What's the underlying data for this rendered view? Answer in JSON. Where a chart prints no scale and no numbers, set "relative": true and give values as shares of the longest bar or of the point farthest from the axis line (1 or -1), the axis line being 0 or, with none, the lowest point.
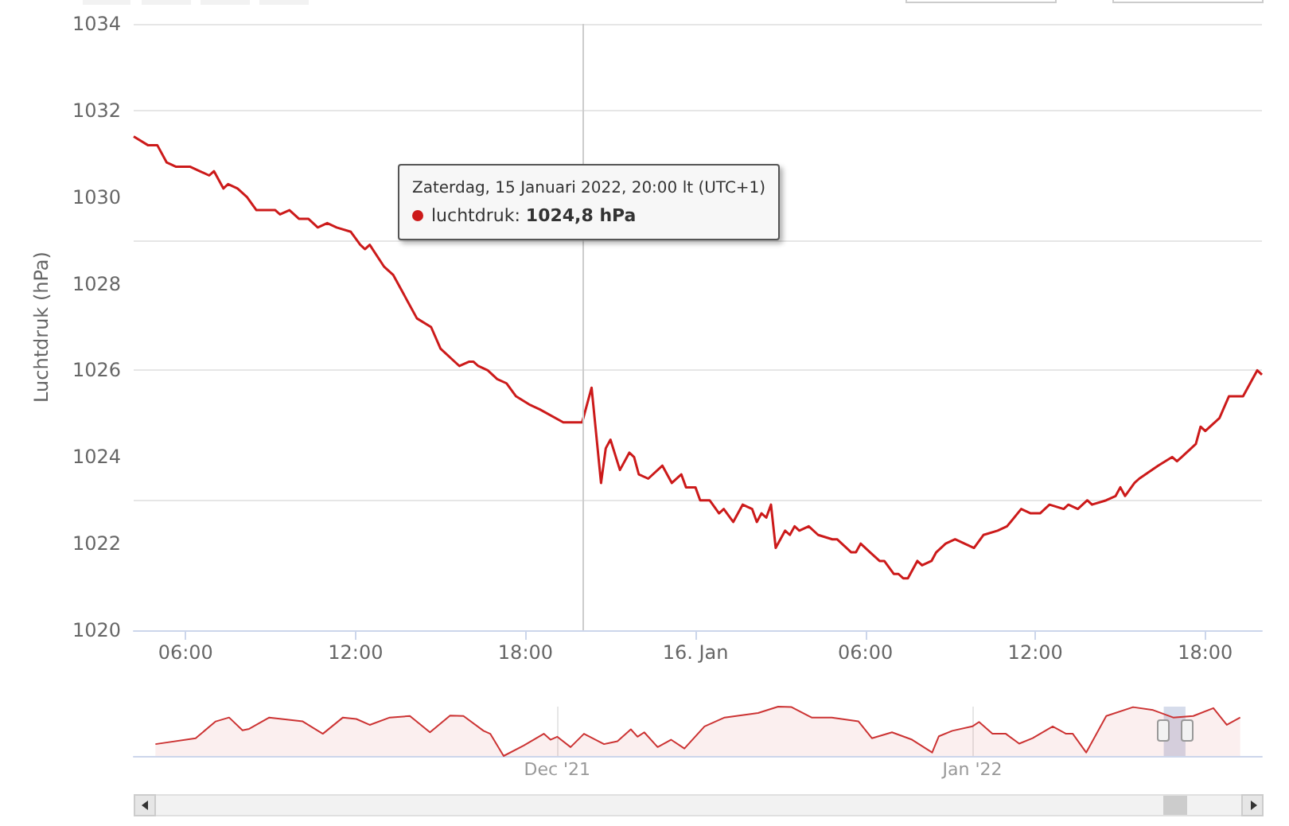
{
  "chart_data": [
    {
      "type": "line",
      "ylabel": "Luchtdruk (hPa)",
      "x": [
        "2022-01-15T04:10",
        "2022-01-15T04:40",
        "2022-01-15T05:00",
        "2022-01-15T05:20",
        "2022-01-15T05:40",
        "2022-01-15T06:10",
        "2022-01-15T06:30",
        "2022-01-15T06:50",
        "2022-01-15T07:00",
        "2022-01-15T07:20",
        "2022-01-15T07:30",
        "2022-01-15T07:50",
        "2022-01-15T08:10",
        "2022-01-15T08:30",
        "2022-01-15T09:10",
        "2022-01-15T09:20",
        "2022-01-15T09:40",
        "2022-01-15T10:00",
        "2022-01-15T10:20",
        "2022-01-15T10:40",
        "2022-01-15T11:00",
        "2022-01-15T11:20",
        "2022-01-15T11:50",
        "2022-01-15T12:10",
        "2022-01-15T12:20",
        "2022-01-15T12:30",
        "2022-01-15T13:00",
        "2022-01-15T13:20",
        "2022-01-15T14:10",
        "2022-01-15T14:40",
        "2022-01-15T15:00",
        "2022-01-15T15:40",
        "2022-01-15T16:00",
        "2022-01-15T16:10",
        "2022-01-15T16:20",
        "2022-01-15T16:40",
        "2022-01-15T17:00",
        "2022-01-15T17:20",
        "2022-01-15T17:40",
        "2022-01-15T18:10",
        "2022-01-15T18:30",
        "2022-01-15T19:20",
        "2022-01-15T20:00",
        "2022-01-15T20:20",
        "2022-01-15T20:40",
        "2022-01-15T20:50",
        "2022-01-15T21:00",
        "2022-01-15T21:20",
        "2022-01-15T21:40",
        "2022-01-15T21:50",
        "2022-01-15T22:00",
        "2022-01-15T22:20",
        "2022-01-15T22:50",
        "2022-01-15T23:10",
        "2022-01-15T23:30",
        "2022-01-15T23:40",
        "2022-01-16T00:00",
        "2022-01-16T00:10",
        "2022-01-16T00:30",
        "2022-01-16T00:50",
        "2022-01-16T01:00",
        "2022-01-16T01:20",
        "2022-01-16T01:40",
        "2022-01-16T02:00",
        "2022-01-16T02:10",
        "2022-01-16T02:20",
        "2022-01-16T02:30",
        "2022-01-16T02:40",
        "2022-01-16T02:50",
        "2022-01-16T03:10",
        "2022-01-16T03:20",
        "2022-01-16T03:30",
        "2022-01-16T03:40",
        "2022-01-16T04:00",
        "2022-01-16T04:20",
        "2022-01-16T04:50",
        "2022-01-16T05:00",
        "2022-01-16T05:30",
        "2022-01-16T05:40",
        "2022-01-16T05:50",
        "2022-01-16T06:10",
        "2022-01-16T06:30",
        "2022-01-16T06:40",
        "2022-01-16T07:00",
        "2022-01-16T07:10",
        "2022-01-16T07:20",
        "2022-01-16T07:30",
        "2022-01-16T07:50",
        "2022-01-16T08:00",
        "2022-01-16T08:20",
        "2022-01-16T08:30",
        "2022-01-16T08:50",
        "2022-01-16T09:10",
        "2022-01-16T09:50",
        "2022-01-16T10:10",
        "2022-01-16T10:40",
        "2022-01-16T11:00",
        "2022-01-16T11:30",
        "2022-01-16T11:50",
        "2022-01-16T12:10",
        "2022-01-16T12:30",
        "2022-01-16T13:00",
        "2022-01-16T13:10",
        "2022-01-16T13:30",
        "2022-01-16T13:50",
        "2022-01-16T14:00",
        "2022-01-16T14:30",
        "2022-01-16T14:50",
        "2022-01-16T15:00",
        "2022-01-16T15:10",
        "2022-01-16T15:30",
        "2022-01-16T15:40",
        "2022-01-16T16:20",
        "2022-01-16T16:50",
        "2022-01-16T17:00",
        "2022-01-16T17:10",
        "2022-01-16T17:40",
        "2022-01-16T17:50",
        "2022-01-16T18:00",
        "2022-01-16T18:30",
        "2022-01-16T18:50",
        "2022-01-16T19:20",
        "2022-01-16T19:40",
        "2022-01-16T19:50",
        "2022-01-16T20:00"
      ],
      "series": [
        {
          "color": "#cc1a1a",
          "values": [
            1031.4,
            1031.2,
            1031.2,
            1030.8,
            1030.7,
            1030.7,
            1030.6,
            1030.5,
            1030.6,
            1030.2,
            1030.3,
            1030.2,
            1030.0,
            1029.7,
            1029.7,
            1029.6,
            1029.7,
            1029.5,
            1029.5,
            1029.3,
            1029.4,
            1029.3,
            1029.2,
            1028.9,
            1028.8,
            1028.9,
            1028.4,
            1028.2,
            1027.2,
            1027.0,
            1026.5,
            1026.1,
            1026.2,
            1026.2,
            1026.1,
            1026.0,
            1025.8,
            1025.7,
            1025.4,
            1025.2,
            1025.1,
            1024.8,
            1024.8,
            1025.6,
            1023.4,
            1024.2,
            1024.4,
            1023.7,
            1024.1,
            1024.0,
            1023.6,
            1023.5,
            1023.8,
            1023.4,
            1023.6,
            1023.3,
            1023.3,
            1023.0,
            1023.0,
            1022.7,
            1022.8,
            1022.5,
            1022.9,
            1022.8,
            1022.5,
            1022.7,
            1022.6,
            1022.9,
            1021.9,
            1022.3,
            1022.2,
            1022.4,
            1022.3,
            1022.4,
            1022.2,
            1022.1,
            1022.1,
            1021.8,
            1021.8,
            1022.0,
            1021.8,
            1021.6,
            1021.6,
            1021.3,
            1021.3,
            1021.2,
            1021.2,
            1021.6,
            1021.5,
            1021.6,
            1021.8,
            1022.0,
            1022.1,
            1021.9,
            1022.2,
            1022.3,
            1022.4,
            1022.8,
            1022.7,
            1022.7,
            1022.9,
            1022.8,
            1022.9,
            1022.8,
            1023.0,
            1022.9,
            1023.0,
            1023.1,
            1023.3,
            1023.1,
            1023.4,
            1023.5,
            1023.8,
            1024.0,
            1023.9,
            1024.0,
            1024.3,
            1024.7,
            1024.6,
            1024.9,
            1025.4,
            1025.4,
            1025.8,
            1026.0,
            1025.9
          ]
        }
      ],
      "xlim": [
        "2022-01-15T04:10",
        "2022-01-16T20:00"
      ],
      "xticks": [
        {
          "value": "2022-01-15T06:00",
          "label": "06:00"
        },
        {
          "value": "2022-01-15T12:00",
          "label": "12:00"
        },
        {
          "value": "2022-01-15T18:00",
          "label": "18:00"
        },
        {
          "value": "2022-01-16T00:00",
          "label": "16. Jan"
        },
        {
          "value": "2022-01-16T06:00",
          "label": "06:00"
        },
        {
          "value": "2022-01-16T12:00",
          "label": "12:00"
        },
        {
          "value": "2022-01-16T18:00",
          "label": "18:00"
        }
      ],
      "ylim": [
        1020,
        1034
      ],
      "yticks": [
        1020,
        1022,
        1024,
        1026,
        1028,
        1030,
        1032,
        1034
      ],
      "grid": "y",
      "ref_lines": [
        {
          "axis": "x",
          "value": "2022-01-15T20:00",
          "color": "#cccccc"
        }
      ],
      "annotations": [
        "Zaterdag, 15 Januari 2022, 20:00 lt (UTC+1)",
        "luchtdruk: 1024,8 hPa"
      ]
    },
    {
      "type": "area",
      "relative": true,
      "x": [
        "2021-11-01",
        "2021-11-04",
        "2021-11-05T12:00",
        "2021-11-06T12:00",
        "2021-11-07T12:00",
        "2021-11-08",
        "2021-11-09T12:00",
        "2021-11-12",
        "2021-11-13T12:00",
        "2021-11-15",
        "2021-11-16",
        "2021-11-17",
        "2021-11-18T12:00",
        "2021-11-20",
        "2021-11-21T12:00",
        "2021-11-23",
        "2021-11-24",
        "2021-11-25T12:00",
        "2021-11-26",
        "2021-11-27",
        "2021-11-28T12:00",
        "2021-11-30",
        "2021-11-30T12:00",
        "2021-12-01",
        "2021-12-02",
        "2021-12-03",
        "2021-12-04T12:00",
        "2021-12-05T12:00",
        "2021-12-06T12:00",
        "2021-12-07",
        "2021-12-07T12:00",
        "2021-12-08T12:00",
        "2021-12-09T12:00",
        "2021-12-10T12:00",
        "2021-12-12",
        "2021-12-13T12:00",
        "2021-12-16",
        "2021-12-17T12:00",
        "2021-12-18T12:00",
        "2021-12-20",
        "2021-12-21T12:00",
        "2021-12-23T12:00",
        "2021-12-24T12:00",
        "2021-12-26",
        "2021-12-27T12:00",
        "2021-12-29",
        "2021-12-29T12:00",
        "2021-12-30T12:00",
        "2022-01-01",
        "2022-01-01T12:00",
        "2022-01-02T12:00",
        "2022-01-03T12:00",
        "2022-01-04T12:00",
        "2022-01-05T12:00",
        "2022-01-07",
        "2022-01-08",
        "2022-01-08T12:00",
        "2022-01-09T12:00",
        "2022-01-11",
        "2022-01-13",
        "2022-01-14T12:00",
        "2022-01-16",
        "2022-01-17T12:00",
        "2022-01-19",
        "2022-01-20",
        "2022-01-21"
      ],
      "series": [
        {
          "color": "#cc3333",
          "values": [
            0.24,
            0.36,
            0.7,
            0.78,
            0.52,
            0.55,
            0.78,
            0.7,
            0.45,
            0.78,
            0.75,
            0.63,
            0.78,
            0.81,
            0.48,
            0.82,
            0.81,
            0.51,
            0.45,
            0,
            0.21,
            0.45,
            0.33,
            0.39,
            0.18,
            0.45,
            0.24,
            0.3,
            0.54,
            0.39,
            0.48,
            0.18,
            0.33,
            0.15,
            0.6,
            0.78,
            0.87,
            1,
            0.99,
            0.78,
            0.78,
            0.7,
            0.36,
            0.48,
            0.33,
            0.07,
            0.4,
            0.51,
            0.6,
            0.69,
            0.45,
            0.45,
            0.25,
            0.36,
            0.6,
            0.45,
            0.45,
            0.07,
            0.81,
            0.99,
            0.93,
            0.78,
            0.81,
            0.97,
            0.63,
            0.78
          ]
        }
      ],
      "xlim": [
        "2021-10-30T09:00",
        "2022-01-22T15:00"
      ],
      "xticks": [
        {
          "value": "2021-12-01",
          "label": "Dec '21"
        },
        {
          "value": "2022-01-01",
          "label": "Jan '22"
        }
      ],
      "grid": "x",
      "bands": [
        {
          "axis": "x",
          "from": "2022-01-15T07:00",
          "to": "2022-01-16T22:00",
          "color": "#ccd3e6"
        }
      ]
    }
  ]
}
